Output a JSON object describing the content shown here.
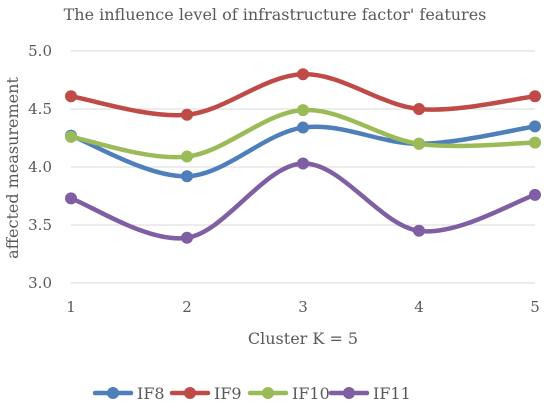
{
  "chart_data": {
    "type": "line",
    "title": "The influence level of infrastructure factor' features",
    "xlabel": "Cluster K = 5",
    "ylabel": "affected measurement",
    "categories": [
      "1",
      "2",
      "3",
      "4",
      "5"
    ],
    "ylim": [
      3.0,
      5.0
    ],
    "yticks": [
      "3.0",
      "3.5",
      "4.0",
      "4.5",
      "5.0"
    ],
    "grid": true,
    "smooth": true,
    "legend_position": "bottom",
    "series": [
      {
        "name": "IF8",
        "color": "#4e7fbb",
        "values": [
          4.27,
          3.92,
          4.34,
          4.2,
          4.35
        ]
      },
      {
        "name": "IF9",
        "color": "#bf4b49",
        "values": [
          4.61,
          4.45,
          4.8,
          4.5,
          4.61
        ]
      },
      {
        "name": "IF10",
        "color": "#9bbb59",
        "values": [
          4.26,
          4.09,
          4.49,
          4.2,
          4.21
        ]
      },
      {
        "name": "IF11",
        "color": "#7f5ea3",
        "values": [
          3.73,
          3.39,
          4.03,
          3.45,
          3.76
        ]
      }
    ]
  }
}
